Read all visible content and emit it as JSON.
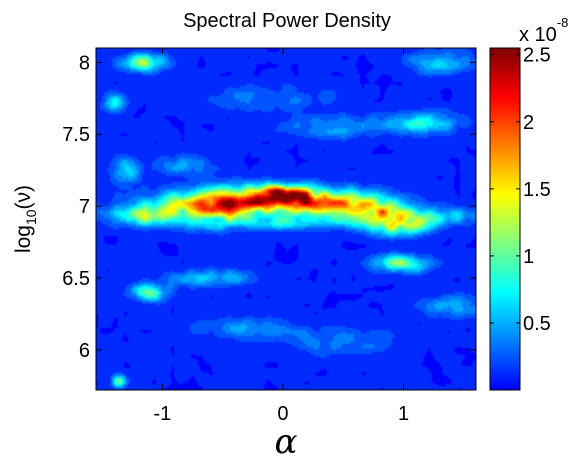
{
  "chart_data": {
    "type": "heatmap",
    "title": "Spectral Power Density",
    "xlabel": "α",
    "ylabel_base": "log",
    "ylabel_sub": "10",
    "ylabel_rest": "(ν)",
    "x_ticks": [
      -1,
      0,
      1
    ],
    "x_tick_labels": [
      "-1",
      "0",
      "1"
    ],
    "y_ticks": [
      6,
      6.5,
      7,
      7.5,
      8
    ],
    "y_tick_labels": [
      "6",
      "6.5",
      "7",
      "7.5",
      "8"
    ],
    "xlim": [
      -1.55,
      1.6
    ],
    "ylim": [
      5.72,
      8.1
    ],
    "colormap": "jet",
    "colorbar": {
      "label_base": "x 10",
      "label_exp": "-8",
      "ticks": [
        0.5,
        1,
        1.5,
        2,
        2.5
      ],
      "tick_labels": [
        "0.5",
        "1",
        "1.5",
        "2",
        "2.5"
      ],
      "range": [
        0,
        2.55
      ]
    },
    "blobs": [
      {
        "x": 0.0,
        "y": 7.08,
        "sx": 0.1,
        "sy": 0.03,
        "v": 1.2
      },
      {
        "x": -0.1,
        "y": 7.05,
        "sx": 0.35,
        "sy": 0.06,
        "v": 0.9
      },
      {
        "x": -0.65,
        "y": 6.98,
        "sx": 0.35,
        "sy": 0.07,
        "v": 0.6
      },
      {
        "x": 0.5,
        "y": 7.0,
        "sx": 0.3,
        "sy": 0.06,
        "v": 0.55
      },
      {
        "x": 0.95,
        "y": 6.88,
        "sx": 0.18,
        "sy": 0.05,
        "v": 0.6
      },
      {
        "x": 0.85,
        "y": 6.95,
        "sx": 0.1,
        "sy": 0.05,
        "v": 0.4
      },
      {
        "x": 1.25,
        "y": 6.93,
        "sx": 0.25,
        "sy": 0.04,
        "v": 0.25
      },
      {
        "x": -1.2,
        "y": 6.93,
        "sx": 0.18,
        "sy": 0.04,
        "v": 0.3
      },
      {
        "x": -1.15,
        "y": 8.0,
        "sx": 0.12,
        "sy": 0.04,
        "v": 0.4
      },
      {
        "x": 1.3,
        "y": 8.0,
        "sx": 0.18,
        "sy": 0.05,
        "v": 0.22
      },
      {
        "x": 0.45,
        "y": 7.55,
        "sx": 0.3,
        "sy": 0.05,
        "v": 0.15
      },
      {
        "x": 1.15,
        "y": 7.58,
        "sx": 0.2,
        "sy": 0.05,
        "v": 0.25
      },
      {
        "x": -1.3,
        "y": 7.25,
        "sx": 0.08,
        "sy": 0.06,
        "v": 0.22
      },
      {
        "x": -1.4,
        "y": 7.72,
        "sx": 0.06,
        "sy": 0.04,
        "v": 0.28
      },
      {
        "x": -0.8,
        "y": 7.28,
        "sx": 0.15,
        "sy": 0.05,
        "v": 0.14
      },
      {
        "x": 0.98,
        "y": 6.6,
        "sx": 0.15,
        "sy": 0.04,
        "v": 0.38
      },
      {
        "x": -1.1,
        "y": 6.4,
        "sx": 0.1,
        "sy": 0.04,
        "v": 0.4
      },
      {
        "x": -0.6,
        "y": 6.5,
        "sx": 0.25,
        "sy": 0.04,
        "v": 0.18
      },
      {
        "x": 1.45,
        "y": 6.3,
        "sx": 0.2,
        "sy": 0.05,
        "v": 0.16
      },
      {
        "x": -1.35,
        "y": 5.78,
        "sx": 0.04,
        "sy": 0.03,
        "v": 0.4
      },
      {
        "x": -0.3,
        "y": 6.15,
        "sx": 0.3,
        "sy": 0.05,
        "v": 0.12
      },
      {
        "x": 0.5,
        "y": 6.05,
        "sx": 0.3,
        "sy": 0.06,
        "v": 0.11
      },
      {
        "x": -0.1,
        "y": 7.75,
        "sx": 0.35,
        "sy": 0.06,
        "v": 0.1
      },
      {
        "x": 0.05,
        "y": 6.88,
        "sx": 0.45,
        "sy": 0.03,
        "v": 0.18
      }
    ]
  }
}
